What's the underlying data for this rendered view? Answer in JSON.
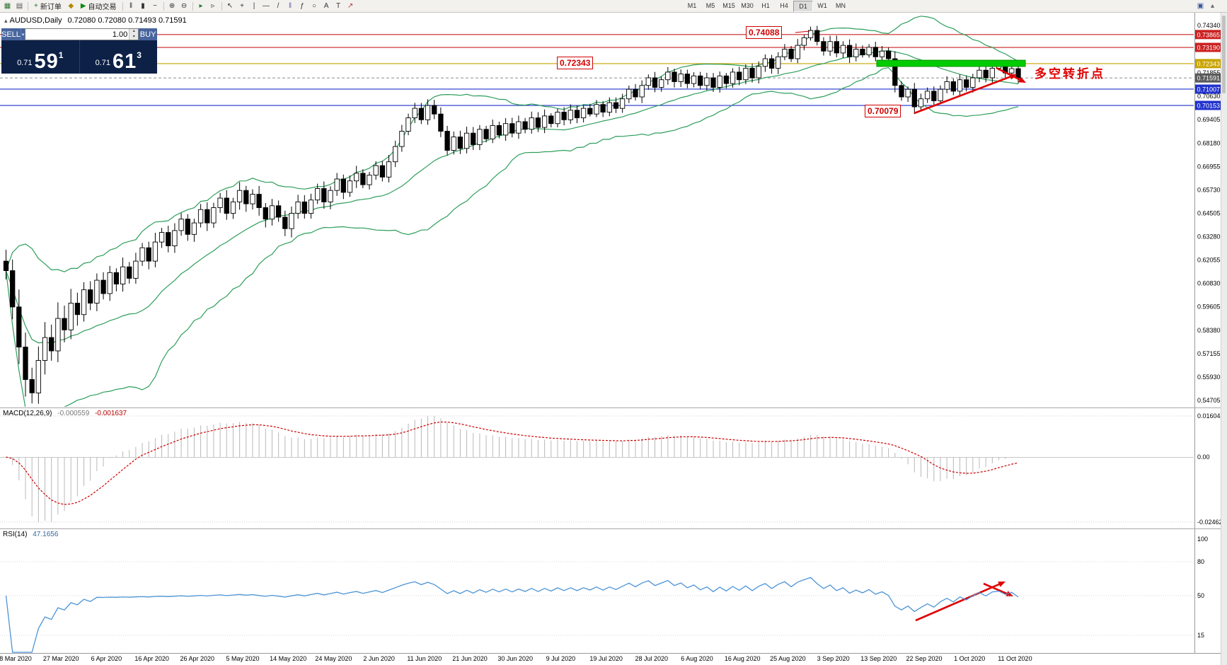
{
  "toolbar": {
    "items": [
      {
        "name": "new-chart-icon",
        "glyph": "▦",
        "color": "#2f6e31"
      },
      {
        "name": "profiles-icon",
        "glyph": "▤",
        "color": "#555555"
      },
      {
        "sep": true
      },
      {
        "name": "new-order-button",
        "glyph": "+",
        "color": "#1a7a1a",
        "label": "新订单"
      },
      {
        "name": "metaeditor-icon",
        "glyph": "◆",
        "color": "#b08a00"
      },
      {
        "name": "autotrade-button",
        "glyph": "▶",
        "color": "#0a8a0a",
        "label": "自动交易"
      },
      {
        "sep": true
      },
      {
        "name": "bars-chart-icon",
        "glyph": "‖",
        "color": "#333333"
      },
      {
        "name": "candlestick-chart-icon",
        "glyph": "▮",
        "color": "#333333"
      },
      {
        "name": "line-chart-icon",
        "glyph": "~",
        "color": "#333333"
      },
      {
        "sep": true
      },
      {
        "name": "zoom-in-icon",
        "glyph": "⊕",
        "color": "#333333"
      },
      {
        "name": "zoom-out-icon",
        "glyph": "⊖",
        "color": "#333333"
      },
      {
        "sep": true
      },
      {
        "name": "auto-scroll-icon",
        "glyph": "▸",
        "color": "#2a7a2a"
      },
      {
        "name": "chart-shift-icon",
        "glyph": "▹",
        "color": "#333333"
      },
      {
        "sep": true
      },
      {
        "name": "cursor-icon",
        "glyph": "↖",
        "color": "#333333"
      },
      {
        "name": "crosshair-icon",
        "glyph": "+",
        "color": "#333333"
      },
      {
        "name": "vertical-line-icon",
        "glyph": "|",
        "color": "#333333"
      },
      {
        "name": "horizontal-line-icon",
        "glyph": "—",
        "color": "#333333"
      },
      {
        "name": "trendline-icon",
        "glyph": "/",
        "color": "#333333"
      },
      {
        "name": "equidistant-channel-icon",
        "glyph": "‖",
        "color": "#6666aa"
      },
      {
        "name": "fibonacci-icon",
        "glyph": "ƒ",
        "color": "#333333"
      },
      {
        "name": "shapes-icon",
        "glyph": "○",
        "color": "#333333"
      },
      {
        "name": "text-icon",
        "glyph": "A",
        "color": "#333333"
      },
      {
        "name": "text-label-icon",
        "glyph": "T",
        "color": "#333333"
      },
      {
        "name": "arrow-object-icon",
        "glyph": "↗",
        "color": "#c03030"
      }
    ],
    "timeframes": [
      "M1",
      "M5",
      "M15",
      "M30",
      "H1",
      "H4",
      "D1",
      "W1",
      "MN"
    ],
    "active_timeframe": "D1",
    "right_items": [
      {
        "name": "chart-window-icon",
        "glyph": "▣",
        "color": "#3a5a9a"
      },
      {
        "name": "scroll-top-icon",
        "glyph": "▴",
        "color": "#666666"
      }
    ]
  },
  "symbol_header": {
    "toggle_glyph": "▴",
    "symbol": "AUDUSD,Daily",
    "ohlc": "0.72080 0.72080 0.71493 0.71591"
  },
  "trade_panel": {
    "sell_label": "SELL",
    "buy_label": "BUY",
    "volume": "1.00",
    "dropdown_glyph": "▾",
    "spin_up": "▴",
    "spin_down": "▾",
    "bid_small": "0.71",
    "bid_big": "59",
    "bid_sup": "1",
    "ask_small": "0.71",
    "ask_big": "61",
    "ask_sup": "3"
  },
  "annotations": {
    "high_label": "0.74088",
    "mid_label": "0.72343",
    "low_label": "0.70079",
    "pivot_label": "多空转折点"
  },
  "macd_label": {
    "title": "MACD(12,26,9)",
    "main_value": "-0.000559",
    "signal_value": "-0.001637"
  },
  "rsi_label": {
    "title": "RSI(14)",
    "value": "47.1656"
  },
  "chart_data": {
    "type": "candlestick",
    "symbol": "AUDUSD",
    "timeframe": "Daily",
    "ohlc_header": {
      "open": "0.72080",
      "high": "0.72080",
      "low": "0.71493",
      "close": "0.71591"
    },
    "price_axis": {
      "max": 0.7434,
      "min": 0.54705,
      "ticks": [
        "0.74340",
        "0.71855",
        "0.70630",
        "0.69405",
        "0.68180",
        "0.66955",
        "0.65730",
        "0.64505",
        "0.63280",
        "0.62055",
        "0.60830",
        "0.59605",
        "0.58380",
        "0.57155",
        "0.55930",
        "0.54705"
      ]
    },
    "price_lines": [
      {
        "label": "0.73865",
        "price": 0.73865,
        "color": "#cc2222",
        "badge": "#cc2222"
      },
      {
        "label": "0.73190",
        "price": 0.7319,
        "color": "#cc2222",
        "badge": "#cc2222"
      },
      {
        "label": "0.72343",
        "price": 0.72343,
        "color": "#c8a400",
        "badge": "#c8a400"
      },
      {
        "label": "0.71591",
        "price": 0.71591,
        "color": "#999999",
        "badge": "#5a5a5a",
        "dash": "4 3"
      },
      {
        "label": "0.71007",
        "price": 0.71007,
        "color": "#2233cc",
        "badge": "#2233cc"
      },
      {
        "label": "0.70153",
        "price": 0.70153,
        "color": "#2233cc",
        "badge": "#2233cc"
      }
    ],
    "candles": {
      "closes": [
        0.615,
        0.596,
        0.575,
        0.558,
        0.551,
        0.568,
        0.58,
        0.573,
        0.59,
        0.584,
        0.598,
        0.592,
        0.605,
        0.598,
        0.61,
        0.603,
        0.614,
        0.608,
        0.617,
        0.611,
        0.62,
        0.627,
        0.62,
        0.63,
        0.635,
        0.628,
        0.636,
        0.642,
        0.634,
        0.64,
        0.647,
        0.64,
        0.648,
        0.653,
        0.645,
        0.651,
        0.657,
        0.65,
        0.655,
        0.648,
        0.642,
        0.649,
        0.643,
        0.637,
        0.645,
        0.651,
        0.645,
        0.652,
        0.658,
        0.651,
        0.657,
        0.663,
        0.656,
        0.662,
        0.666,
        0.66,
        0.665,
        0.67,
        0.664,
        0.672,
        0.68,
        0.688,
        0.695,
        0.7,
        0.694,
        0.7015,
        0.697,
        0.688,
        0.678,
        0.685,
        0.679,
        0.687,
        0.681,
        0.689,
        0.684,
        0.691,
        0.686,
        0.692,
        0.687,
        0.693,
        0.689,
        0.695,
        0.69,
        0.696,
        0.692,
        0.698,
        0.694,
        0.699,
        0.695,
        0.7,
        0.697,
        0.702,
        0.698,
        0.703,
        0.7,
        0.705,
        0.71,
        0.706,
        0.712,
        0.716,
        0.711,
        0.715,
        0.719,
        0.714,
        0.718,
        0.713,
        0.717,
        0.712,
        0.716,
        0.711,
        0.717,
        0.713,
        0.719,
        0.715,
        0.721,
        0.716,
        0.722,
        0.726,
        0.721,
        0.727,
        0.731,
        0.726,
        0.733,
        0.737,
        0.7408,
        0.735,
        0.73,
        0.735,
        0.729,
        0.733,
        0.727,
        0.731,
        0.728,
        0.732,
        0.727,
        0.73,
        0.726,
        0.712,
        0.706,
        0.71,
        0.7008,
        0.705,
        0.709,
        0.704,
        0.71,
        0.714,
        0.709,
        0.715,
        0.711,
        0.716,
        0.72,
        0.716,
        0.721,
        0.722,
        0.7185,
        0.7208,
        0.71591
      ]
    },
    "x_labels": [
      "8 Mar 2020",
      "27 Mar 2020",
      "6 Apr 2020",
      "16 Apr 2020",
      "26 Apr 2020",
      "5 May 2020",
      "14 May 2020",
      "24 May 2020",
      "2 Jun 2020",
      "11 Jun 2020",
      "21 Jun 2020",
      "30 Jun 2020",
      "9 Jul 2020",
      "19 Jul 2020",
      "28 Jul 2020",
      "6 Aug 2020",
      "16 Aug 2020",
      "25 Aug 2020",
      "3 Sep 2020",
      "13 Sep 2020",
      "22 Sep 2020",
      "1 Oct 2020",
      "11 Oct 2020"
    ],
    "indicators": {
      "bollinger": {
        "period": 20,
        "deviation": 2,
        "color": "#2e9e5b"
      },
      "macd": {
        "params": "12,26,9",
        "main": -0.000559,
        "signal": -0.001637,
        "axis": [
          "0.016048",
          "0.00",
          "-0.024625"
        ]
      },
      "rsi": {
        "period": 14,
        "value": 47.1656,
        "axis": [
          "100",
          "80",
          "50",
          "15"
        ],
        "levels": [
          80,
          50,
          15
        ]
      }
    },
    "pivot_zone": {
      "price_top": 0.7252,
      "price_bottom": 0.7219,
      "color": "#00cc00",
      "border": "#089000"
    }
  }
}
